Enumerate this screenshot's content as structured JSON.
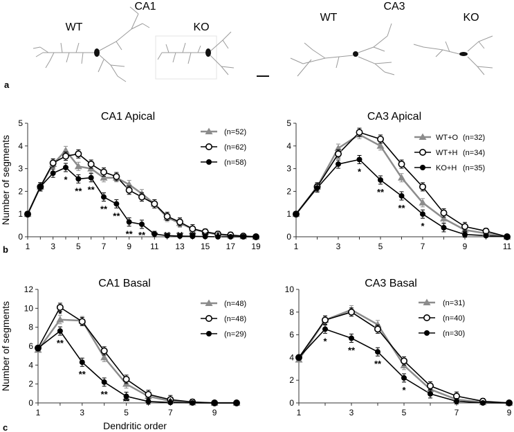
{
  "neurons": {
    "panel_label": "a",
    "ca1_title": "CA1",
    "ca3_title": "CA3",
    "labels": [
      "WT",
      "KO",
      "WT",
      "KO"
    ]
  },
  "panel_labels": {
    "b": "b",
    "c": "c"
  },
  "common": {
    "ylabel": "Number of segments",
    "xlabel": "Dendritic order"
  },
  "chart_data": [
    {
      "id": "ca1-apical",
      "type": "line",
      "title": "CA1 Apical",
      "ylabel": "Number of segments",
      "xlabel": "",
      "ylim": [
        0,
        5
      ],
      "yticks": [
        0,
        1,
        2,
        3,
        4,
        5
      ],
      "xlim": [
        1,
        19
      ],
      "xticks": [
        1,
        3,
        5,
        7,
        9,
        11,
        13,
        15,
        17,
        19
      ],
      "legend_position": "top-right",
      "series": [
        {
          "label": "(n=52)",
          "marker": "triangle",
          "color": "#8c8c8c",
          "x": [
            1,
            2,
            3,
            4,
            5,
            6,
            7,
            8,
            9,
            10,
            11,
            12,
            13,
            14,
            15,
            16,
            17,
            18,
            19
          ],
          "y": [
            1.0,
            2.2,
            3.2,
            3.8,
            3.1,
            3.0,
            2.6,
            2.6,
            2.3,
            1.9,
            1.45,
            0.85,
            0.6,
            0.35,
            0.2,
            0.1,
            0.05,
            0.02,
            0.0
          ]
        },
        {
          "label": "(n=62)",
          "marker": "circle-open",
          "color": "#000000",
          "x": [
            1,
            2,
            3,
            4,
            5,
            6,
            7,
            8,
            9,
            10,
            11,
            12,
            13,
            14,
            15,
            16,
            17,
            18,
            19
          ],
          "y": [
            1.0,
            2.2,
            3.25,
            3.55,
            3.65,
            3.2,
            2.85,
            2.65,
            2.05,
            1.75,
            1.45,
            0.9,
            0.65,
            0.35,
            0.22,
            0.12,
            0.08,
            0.03,
            0.0
          ]
        },
        {
          "label": "(n=58)",
          "marker": "circle-filled",
          "color": "#000000",
          "x": [
            1,
            2,
            3,
            4,
            5,
            6,
            7,
            8,
            9,
            10,
            11,
            12,
            13,
            14,
            15,
            16,
            17,
            18,
            19
          ],
          "y": [
            1.0,
            2.2,
            2.8,
            3.05,
            2.55,
            2.6,
            1.75,
            1.45,
            0.65,
            0.55,
            0.12,
            0.05,
            0.03,
            0.02,
            0.01,
            0.0,
            0.0,
            0.0,
            0.0
          ]
        }
      ],
      "annotations": [
        {
          "x": 4,
          "text": "*"
        },
        {
          "x": 5,
          "text": "**"
        },
        {
          "x": 6,
          "text": "**"
        },
        {
          "x": 7,
          "text": "**"
        },
        {
          "x": 8,
          "text": "**"
        },
        {
          "x": 9,
          "text": "**"
        },
        {
          "x": 10,
          "text": "**"
        },
        {
          "x": 11,
          "text": "**"
        },
        {
          "x": 12,
          "text": "**"
        },
        {
          "x": 13,
          "text": "**"
        },
        {
          "x": 14,
          "text": "**"
        },
        {
          "x": 15,
          "text": "**"
        },
        {
          "x": 16,
          "text": "*"
        }
      ]
    },
    {
      "id": "ca3-apical",
      "type": "line",
      "title": "CA3 Apical",
      "ylabel": "",
      "xlabel": "",
      "ylim": [
        0,
        5
      ],
      "yticks": [
        0,
        1,
        2,
        3,
        4,
        5
      ],
      "xlim": [
        1,
        11
      ],
      "xticks": [
        1,
        3,
        5,
        7,
        9,
        11
      ],
      "legend_position": "top-right",
      "series": [
        {
          "name": "WT+O",
          "label": "(n=32)",
          "marker": "triangle",
          "color": "#8c8c8c",
          "x": [
            1,
            2,
            3,
            4,
            5,
            6,
            7,
            8,
            9,
            10,
            11
          ],
          "y": [
            1.0,
            2.2,
            3.9,
            4.5,
            4.0,
            2.6,
            1.5,
            0.8,
            0.3,
            0.15,
            0.0
          ]
        },
        {
          "name": "WT+H",
          "label": "(n=34)",
          "marker": "circle-open",
          "color": "#000000",
          "x": [
            1,
            2,
            3,
            4,
            5,
            6,
            7,
            8,
            9,
            10,
            11
          ],
          "y": [
            1.0,
            2.2,
            3.65,
            4.6,
            4.3,
            3.2,
            2.2,
            1.05,
            0.45,
            0.25,
            0.0
          ]
        },
        {
          "name": "KO+H",
          "label": "(n=35)",
          "marker": "circle-filled",
          "color": "#000000",
          "x": [
            1,
            2,
            3,
            4,
            5,
            6,
            7,
            8,
            9,
            10,
            11
          ],
          "y": [
            1.0,
            2.15,
            3.2,
            3.4,
            2.5,
            1.8,
            1.0,
            0.4,
            0.1,
            0.05,
            0.0
          ]
        }
      ],
      "annotations": [
        {
          "x": 4,
          "text": "*"
        },
        {
          "x": 5,
          "text": "**"
        },
        {
          "x": 6,
          "text": "**"
        },
        {
          "x": 7,
          "text": "*"
        }
      ]
    },
    {
      "id": "ca1-basal",
      "type": "line",
      "title": "CA1 Basal",
      "ylabel": "Number of segments",
      "xlabel": "Dendritic order",
      "ylim": [
        0,
        12
      ],
      "yticks": [
        0,
        2,
        4,
        6,
        8,
        10,
        12
      ],
      "xlim": [
        1,
        10
      ],
      "xticks": [
        1,
        3,
        5,
        7,
        9
      ],
      "legend_position": "top-right",
      "series": [
        {
          "label": "(n=48)",
          "marker": "triangle",
          "color": "#8c8c8c",
          "x": [
            1,
            2,
            3,
            4,
            5,
            6,
            7,
            8,
            9,
            10
          ],
          "y": [
            5.6,
            8.8,
            8.7,
            4.8,
            2.0,
            0.7,
            0.2,
            0.05,
            0.0,
            0.0
          ]
        },
        {
          "label": "(n=48)",
          "marker": "circle-open",
          "color": "#000000",
          "x": [
            1,
            2,
            3,
            4,
            5,
            6,
            7,
            8,
            9,
            10
          ],
          "y": [
            5.8,
            10.1,
            8.6,
            5.5,
            2.5,
            0.9,
            0.35,
            0.1,
            0.0,
            0.0
          ]
        },
        {
          "label": "(n=29)",
          "marker": "circle-filled",
          "color": "#000000",
          "x": [
            1,
            2,
            3,
            4,
            5,
            6,
            7,
            8,
            9,
            10
          ],
          "y": [
            5.8,
            7.6,
            4.3,
            2.2,
            0.7,
            0.15,
            0.05,
            0.0,
            0.0,
            0.0
          ]
        }
      ],
      "annotations": [
        {
          "x": 2,
          "text": "*",
          "pos": "above"
        },
        {
          "x": 2,
          "text": "**"
        },
        {
          "x": 3,
          "text": "**"
        },
        {
          "x": 4,
          "text": "**"
        },
        {
          "x": 5,
          "text": "**"
        },
        {
          "x": 6,
          "text": "*"
        },
        {
          "x": 7,
          "text": "*"
        }
      ]
    },
    {
      "id": "ca3-basal",
      "type": "line",
      "title": "CA3 Basal",
      "ylabel": "",
      "xlabel": "",
      "ylim": [
        0,
        10
      ],
      "yticks": [
        0,
        2,
        4,
        6,
        8,
        10
      ],
      "xlim": [
        1,
        9
      ],
      "xticks": [
        1,
        3,
        5,
        7,
        9
      ],
      "legend_position": "top-right",
      "series": [
        {
          "label": "(n=31)",
          "marker": "triangle",
          "color": "#8c8c8c",
          "x": [
            1,
            2,
            3,
            4,
            5,
            6,
            7,
            8,
            9
          ],
          "y": [
            3.8,
            7.3,
            8.2,
            6.9,
            3.3,
            1.2,
            0.3,
            0.05,
            0.0
          ]
        },
        {
          "label": "(n=40)",
          "marker": "circle-open",
          "color": "#000000",
          "x": [
            1,
            2,
            3,
            4,
            5,
            6,
            7,
            8,
            9
          ],
          "y": [
            4.0,
            7.3,
            8.0,
            6.5,
            3.7,
            1.5,
            0.6,
            0.15,
            0.0
          ]
        },
        {
          "label": "(n=30)",
          "marker": "circle-filled",
          "color": "#000000",
          "x": [
            1,
            2,
            3,
            4,
            5,
            6,
            7,
            8,
            9
          ],
          "y": [
            4.0,
            6.5,
            5.7,
            4.5,
            2.2,
            0.8,
            0.15,
            0.0,
            0.0
          ]
        }
      ],
      "annotations": [
        {
          "x": 2,
          "text": "*"
        },
        {
          "x": 3,
          "text": "**"
        },
        {
          "x": 4,
          "text": "**"
        },
        {
          "x": 5,
          "text": "*"
        },
        {
          "x": 7,
          "text": "*"
        }
      ]
    }
  ]
}
